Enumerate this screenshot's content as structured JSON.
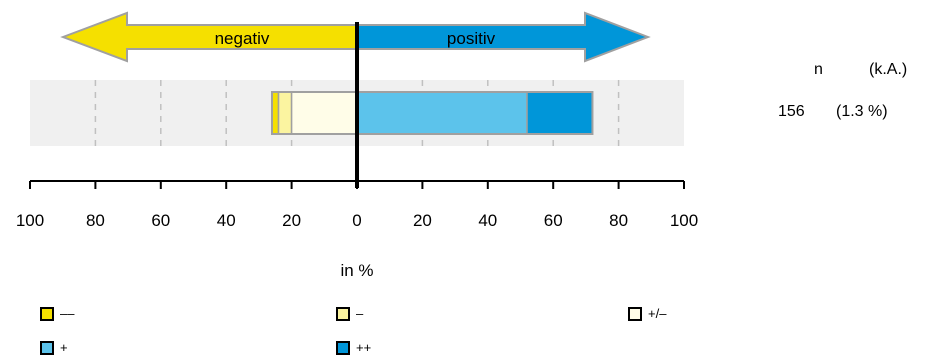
{
  "chart_data": {
    "type": "bar",
    "orientation": "horizontal-diverging",
    "arrows": {
      "negative_label": "negativ",
      "positive_label": "positiv"
    },
    "xlabel": "in %",
    "xlim": [
      -100,
      100
    ],
    "ticks": [
      -100,
      -80,
      -60,
      -40,
      -20,
      0,
      20,
      40,
      60,
      80,
      100
    ],
    "tick_labels": [
      "100",
      "80",
      "60",
      "40",
      "20",
      "0",
      "20",
      "40",
      "60",
      "80",
      "100"
    ],
    "segments": [
      {
        "key": "very_negative",
        "start": -26,
        "end": -24,
        "color": "#f5e000"
      },
      {
        "key": "negative",
        "start": -24,
        "end": -20,
        "color": "#fbf4a0"
      },
      {
        "key": "neutral",
        "start": -20,
        "end": 0,
        "color": "#fffde8"
      },
      {
        "key": "positive",
        "start": 0,
        "end": 52,
        "color": "#5cc3eb"
      },
      {
        "key": "very_positive",
        "start": 52,
        "end": 72,
        "color": "#0096d9"
      }
    ],
    "grid": true,
    "side": {
      "n_header": "n",
      "ka_header": "(k.A.)",
      "n_value": "156",
      "ka_value": "(1.3 %)"
    },
    "legend": {
      "position": "bottom",
      "items": [
        {
          "label": "––",
          "color": "#f5e000"
        },
        {
          "label": "–",
          "color": "#fbf4a0"
        },
        {
          "label": "+/–",
          "color": "#fffde8"
        },
        {
          "label": "+",
          "color": "#5cc3eb"
        },
        {
          "label": "++",
          "color": "#0096d9"
        }
      ]
    }
  }
}
